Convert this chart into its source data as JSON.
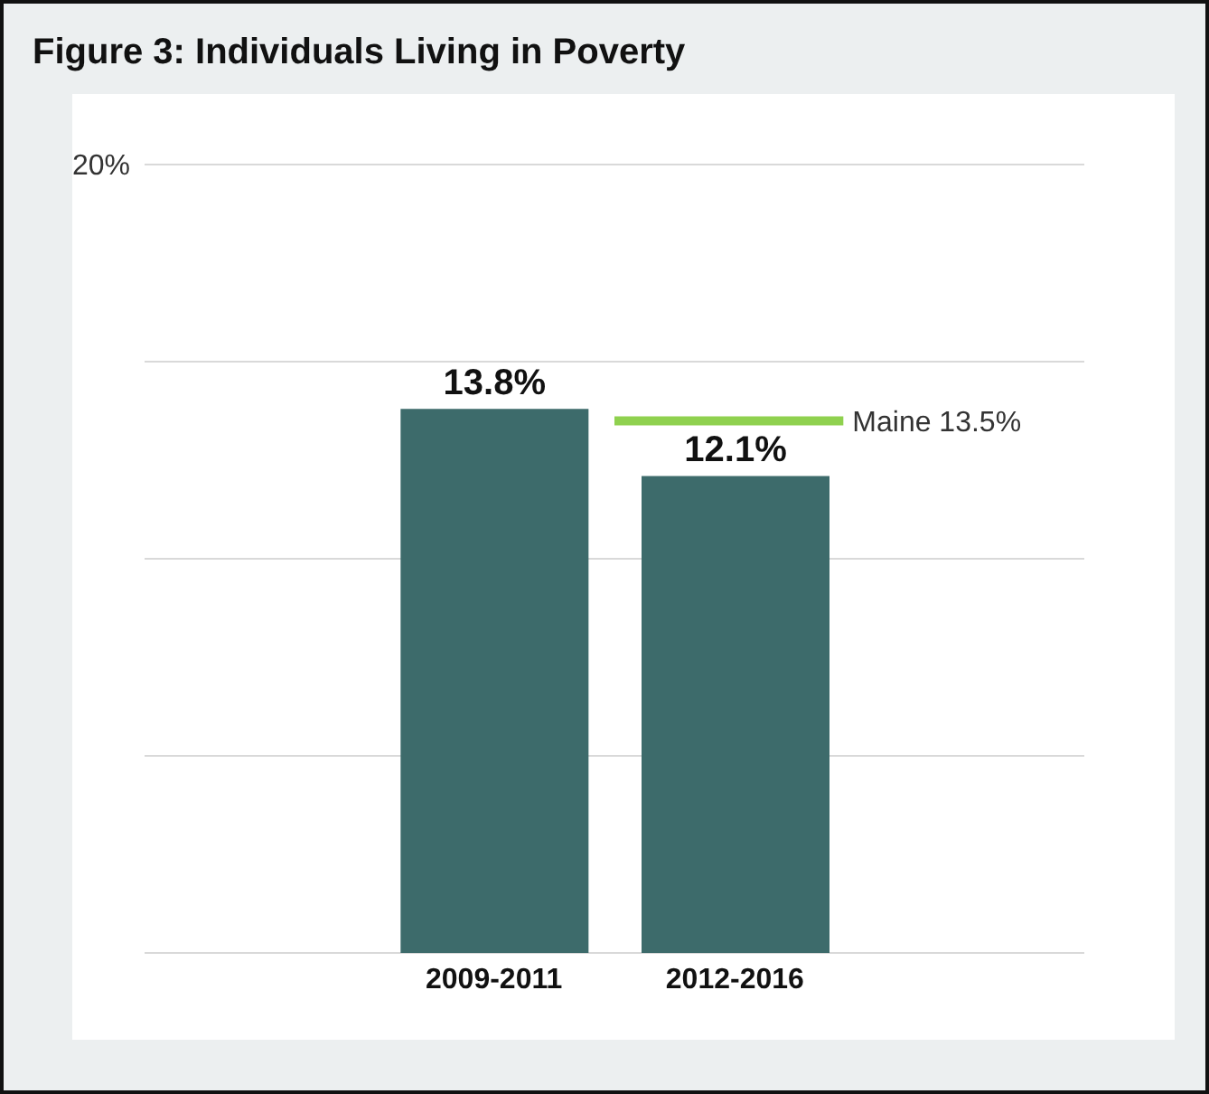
{
  "chart_data": {
    "type": "bar",
    "title": "Figure 3: Individuals Living in Poverty",
    "categories": [
      "2009-2011",
      "2012-2016"
    ],
    "values": [
      13.8,
      12.1
    ],
    "color": "#3d6b6b",
    "ylim": [
      0,
      20
    ],
    "yticks": [
      {
        "value": 0,
        "label": null
      },
      {
        "value": 5,
        "label": null
      },
      {
        "value": 10,
        "label": null
      },
      {
        "value": 15,
        "label": null
      },
      {
        "value": 20,
        "label": "20%"
      }
    ],
    "value_labels": [
      "13.8%",
      "12.1%"
    ],
    "grid": "y",
    "ref_lines": [
      {
        "axis": "y",
        "value": 13.5,
        "label": "Maine 13.5%",
        "color": "#8fd14f"
      }
    ]
  }
}
